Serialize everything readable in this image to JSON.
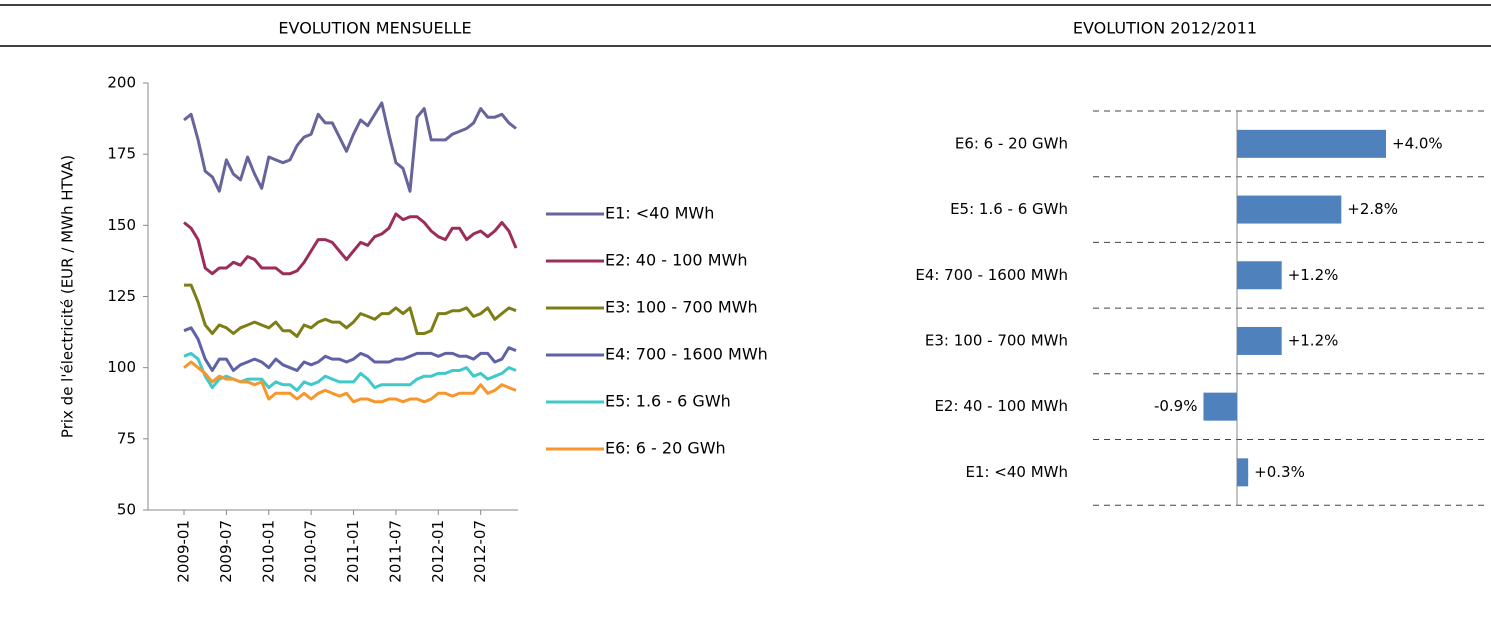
{
  "header": {
    "left": "EVOLUTION MENSUELLE",
    "right": "EVOLUTION 2012/2011"
  },
  "chart_data": [
    {
      "type": "line",
      "ylabel": "Prix de l'électricité (EUR / MWh HTVA)",
      "categories": [
        "2009-01",
        null,
        null,
        null,
        null,
        null,
        "2009-07",
        null,
        null,
        null,
        null,
        null,
        "2010-01",
        null,
        null,
        null,
        null,
        null,
        "2010-07",
        null,
        null,
        null,
        null,
        null,
        "2011-01",
        null,
        null,
        null,
        null,
        null,
        "2011-07",
        null,
        null,
        null,
        null,
        null,
        "2012-01",
        null,
        null,
        null,
        null,
        null,
        "2012-07",
        null,
        null,
        null,
        null,
        null
      ],
      "ylim": [
        50,
        200
      ],
      "yticks": [
        50,
        75,
        100,
        125,
        150,
        175,
        200
      ],
      "legend": "right",
      "series": [
        {
          "name": "E1: <40 MWh",
          "color": "#67649c",
          "values": [
            187,
            189,
            180,
            169,
            167,
            162,
            173,
            168,
            166,
            174,
            168,
            163,
            174,
            173,
            172,
            173,
            178,
            181,
            182,
            189,
            186,
            186,
            181,
            176,
            182,
            187,
            185,
            189,
            193,
            182,
            172,
            170,
            162,
            188,
            191,
            180,
            180,
            180,
            182,
            183,
            184,
            186,
            191,
            188,
            188,
            189,
            186,
            184
          ]
        },
        {
          "name": "E2: 40 - 100 MWh",
          "color": "#9b2d5a",
          "values": [
            151,
            149,
            145,
            135,
            133,
            135,
            135,
            137,
            136,
            139,
            138,
            135,
            135,
            135,
            133,
            133,
            134,
            137,
            141,
            145,
            145,
            144,
            141,
            138,
            141,
            144,
            143,
            146,
            147,
            149,
            154,
            152,
            153,
            153,
            151,
            148,
            146,
            145,
            149,
            149,
            145,
            147,
            148,
            146,
            148,
            151,
            148,
            142
          ]
        },
        {
          "name": "E3: 100 - 700 MWh",
          "color": "#7d7e16",
          "values": [
            129,
            129,
            123,
            115,
            112,
            115,
            114,
            112,
            114,
            115,
            116,
            115,
            114,
            116,
            113,
            113,
            111,
            115,
            114,
            116,
            117,
            116,
            116,
            114,
            116,
            119,
            118,
            117,
            119,
            119,
            121,
            119,
            121,
            112,
            112,
            113,
            119,
            119,
            120,
            120,
            121,
            118,
            119,
            121,
            117,
            119,
            121,
            120
          ]
        },
        {
          "name": "E4: 700 - 1600 MWh",
          "color": "#6062a8",
          "values": [
            113,
            114,
            110,
            103,
            99,
            103,
            103,
            99,
            101,
            102,
            103,
            102,
            100,
            103,
            101,
            100,
            99,
            102,
            101,
            102,
            104,
            103,
            103,
            102,
            103,
            105,
            104,
            102,
            102,
            102,
            103,
            103,
            104,
            105,
            105,
            105,
            104,
            105,
            105,
            104,
            104,
            103,
            105,
            105,
            102,
            103,
            107,
            106
          ]
        },
        {
          "name": "E5: 1.6 - 6 GWh",
          "color": "#3fc9c9",
          "values": [
            104,
            105,
            103,
            97,
            93,
            96,
            97,
            96,
            95,
            96,
            96,
            96,
            93,
            95,
            94,
            94,
            92,
            95,
            94,
            95,
            97,
            96,
            95,
            95,
            95,
            98,
            96,
            93,
            94,
            94,
            94,
            94,
            94,
            96,
            97,
            97,
            98,
            98,
            99,
            99,
            100,
            97,
            98,
            96,
            97,
            98,
            100,
            99
          ]
        },
        {
          "name": "E6: 6 - 20 GWh",
          "color": "#f7962c",
          "values": [
            100,
            102,
            100,
            98,
            95,
            97,
            96,
            96,
            95,
            95,
            94,
            95,
            89,
            91,
            91,
            91,
            89,
            91,
            89,
            91,
            92,
            91,
            90,
            91,
            88,
            89,
            89,
            88,
            88,
            89,
            89,
            88,
            89,
            89,
            88,
            89,
            91,
            91,
            90,
            91,
            91,
            91,
            94,
            91,
            92,
            94,
            93,
            92
          ]
        }
      ]
    },
    {
      "type": "hbar",
      "categories": [
        "E6: 6 - 20 GWh",
        "E5: 1.6 - 6 GWh",
        "E4: 700 - 1600 MWh",
        "E3: 100 - 700 MWh",
        "E2: 40 - 100 MWh",
        "E1: <40 MWh"
      ],
      "values": [
        4.0,
        2.8,
        1.2,
        1.2,
        -0.9,
        0.3
      ],
      "value_labels": [
        "+4.0%",
        "+2.8%",
        "+1.2%",
        "+1.2%",
        "-0.9%",
        "+0.3%"
      ],
      "color": "#4f81bd",
      "grid": true
    }
  ]
}
